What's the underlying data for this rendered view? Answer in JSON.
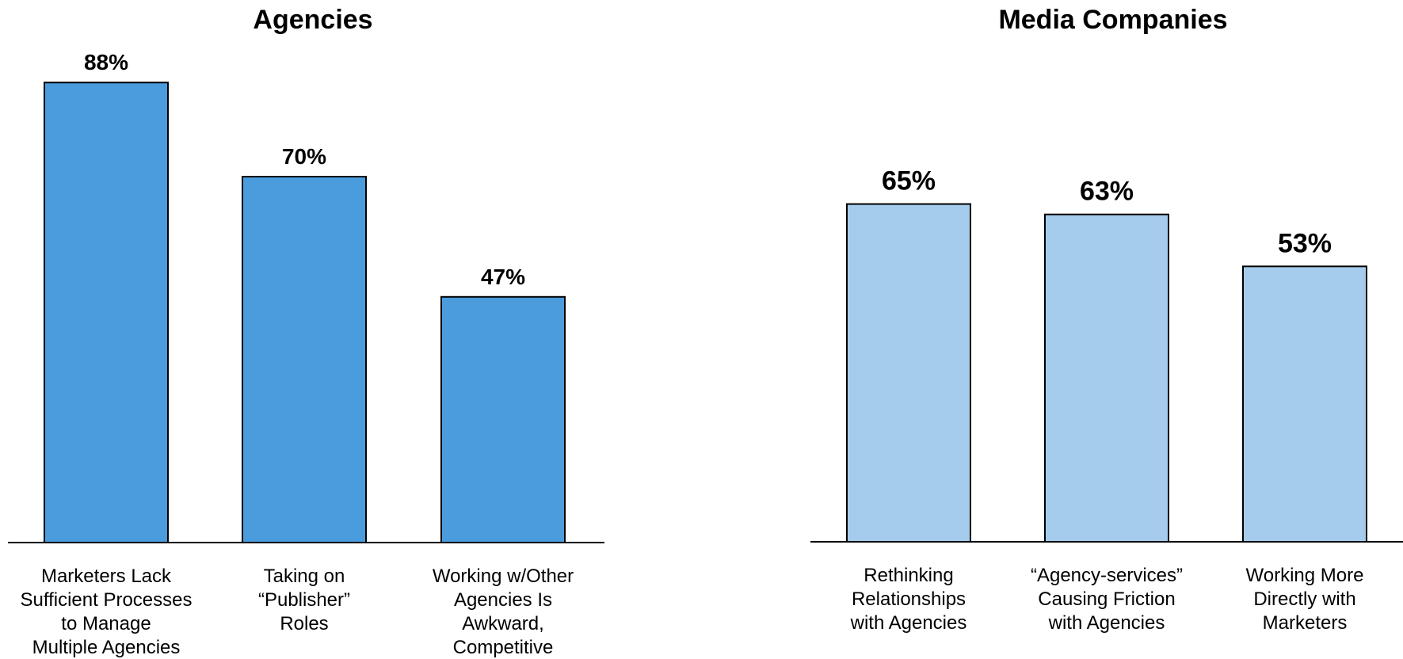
{
  "chart_data": [
    {
      "type": "bar",
      "title": "Agencies",
      "categories": [
        [
          "Marketers Lack",
          "Sufficient Processes",
          "to Manage",
          "Multiple Agencies"
        ],
        [
          "Taking on",
          "“Publisher”",
          "Roles"
        ],
        [
          "Working w/Other",
          "Agencies Is",
          "Awkward,",
          "Competitive"
        ]
      ],
      "values": [
        88,
        70,
        47
      ],
      "value_labels": [
        "88%",
        "70%",
        "47%"
      ],
      "ylim": [
        0,
        100
      ],
      "grid": false,
      "bar_color": "#4b9cdc"
    },
    {
      "type": "bar",
      "title": "Media Companies",
      "categories": [
        [
          "Rethinking",
          "Relationships",
          "with Agencies"
        ],
        [
          "“Agency-services”",
          "Causing Friction",
          "with Agencies"
        ],
        [
          "Working More",
          "Directly with",
          "Marketers"
        ]
      ],
      "values": [
        65,
        63,
        53
      ],
      "value_labels": [
        "65%",
        "63%",
        "53%"
      ],
      "ylim": [
        0,
        100
      ],
      "grid": false,
      "bar_color": "#a5ccec"
    }
  ]
}
